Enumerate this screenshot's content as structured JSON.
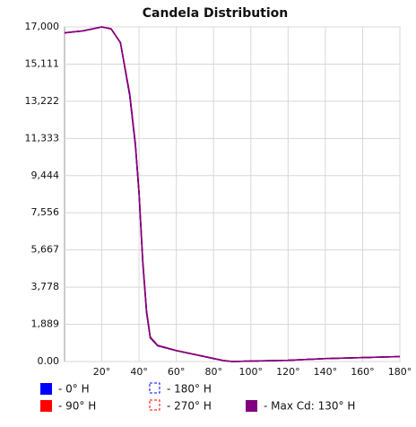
{
  "chart_data": {
    "type": "line",
    "title": "Candela Distribution",
    "x": [
      0,
      10,
      20,
      25,
      30,
      35,
      38,
      40,
      42,
      44,
      46,
      50,
      60,
      70,
      80,
      85,
      90,
      100,
      120,
      140,
      160,
      180
    ],
    "series": [
      {
        "name": "- 0° H",
        "color": "#0000ff",
        "dashed": false,
        "values": [
          16700,
          16800,
          17000,
          16900,
          16200,
          13500,
          11000,
          8500,
          5000,
          2500,
          1200,
          800,
          550,
          350,
          150,
          50,
          0,
          20,
          60,
          150,
          200,
          250
        ]
      },
      {
        "name": "- 90° H",
        "color": "#ff0000",
        "dashed": false,
        "values": [
          16700,
          16800,
          17000,
          16900,
          16200,
          13600,
          11100,
          8600,
          5100,
          2600,
          1250,
          820,
          560,
          360,
          160,
          55,
          0,
          20,
          60,
          150,
          200,
          250
        ]
      },
      {
        "name": "- 180° H",
        "color": "#0000ff",
        "dashed": true,
        "values": [
          16700,
          16800,
          17000,
          16900,
          16200,
          13500,
          11000,
          8500,
          5000,
          2500,
          1200,
          800,
          550,
          350,
          150,
          50,
          0,
          20,
          60,
          150,
          200,
          250
        ]
      },
      {
        "name": "- 270° H",
        "color": "#ff0000",
        "dashed": true,
        "values": [
          16700,
          16800,
          17000,
          16900,
          16200,
          13600,
          11100,
          8600,
          5100,
          2600,
          1250,
          820,
          560,
          360,
          160,
          55,
          0,
          20,
          60,
          150,
          200,
          250
        ]
      },
      {
        "name": "- Max Cd: 130° H",
        "color": "#800080",
        "dashed": false,
        "values": [
          16700,
          16800,
          17000,
          16900,
          16200,
          13550,
          11050,
          8550,
          5050,
          2550,
          1220,
          810,
          555,
          355,
          155,
          52,
          0,
          20,
          60,
          150,
          200,
          250
        ]
      }
    ],
    "xlim": [
      0,
      180
    ],
    "xticks": [
      {
        "value": 20,
        "label": "20°"
      },
      {
        "value": 40,
        "label": "40°"
      },
      {
        "value": 60,
        "label": "60°"
      },
      {
        "value": 80,
        "label": "80°"
      },
      {
        "value": 100,
        "label": "100°"
      },
      {
        "value": 120,
        "label": "120°"
      },
      {
        "value": 140,
        "label": "140°"
      },
      {
        "value": 160,
        "label": "160°"
      },
      {
        "value": 180,
        "label": "180°"
      }
    ],
    "ylim": [
      0,
      17000
    ],
    "yticks": [
      {
        "value": 0,
        "label": "0.00"
      },
      {
        "value": 1889,
        "label": "1,889"
      },
      {
        "value": 3778,
        "label": "3,778"
      },
      {
        "value": 5667,
        "label": "5,667"
      },
      {
        "value": 7556,
        "label": "7,556"
      },
      {
        "value": 9444,
        "label": "9,444"
      },
      {
        "value": 11333,
        "label": "11,333"
      },
      {
        "value": 13222,
        "label": "13,222"
      },
      {
        "value": 15111,
        "label": "15,111"
      },
      {
        "value": 17000,
        "label": "17,000"
      }
    ],
    "grid": true
  }
}
